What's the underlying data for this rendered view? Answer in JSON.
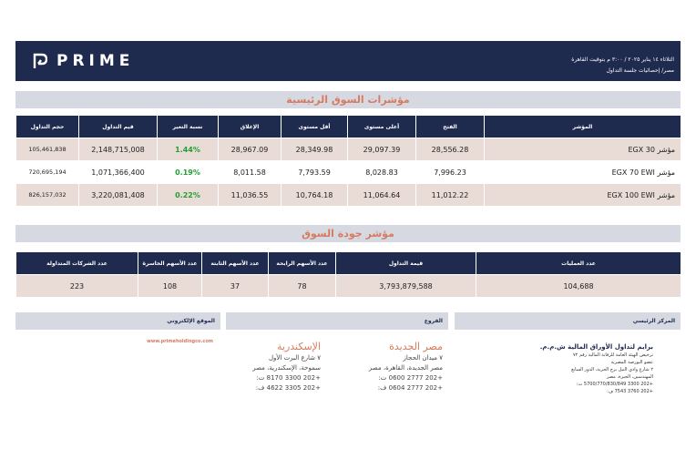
{
  "header": {
    "brand": "PRIME",
    "date_line": "الثلاثاء ١٤ يناير ٢٠٢٥ / ٣:٠٠ م بتوقيت القاهرة",
    "sub_line": "مصر/ إحصائيات جلسة التداول"
  },
  "main_section": {
    "title": "مؤشرات السوق الرئيسية",
    "columns": [
      "المؤشر",
      "الفتح",
      "أعلى مستوى",
      "أقل مستوى",
      "الإغلاق",
      "نسبة التغير",
      "قيم التداول",
      "حجم التداول"
    ],
    "rows": [
      {
        "name": "مؤشر EGX 30",
        "open": "28,556.28",
        "high": "29,097.39",
        "low": "28,349.98",
        "close": "28,967.09",
        "change": "1.44%",
        "value": "2,148,715,008",
        "volume": "105,461,838"
      },
      {
        "name": "مؤشر EGX 70 EWI",
        "open": "7,996.23",
        "high": "8,028.83",
        "low": "7,793.59",
        "close": "8,011.58",
        "change": "0.19%",
        "value": "1,071,366,400",
        "volume": "720,695,194"
      },
      {
        "name": "مؤشر EGX 100 EWI",
        "open": "11,012.22",
        "high": "11,064.64",
        "low": "10,764.18",
        "close": "11,036.55",
        "change": "0.22%",
        "value": "3,220,081,408",
        "volume": "826,157,032"
      }
    ]
  },
  "quality_section": {
    "title": "مؤشر جودة السوق",
    "columns": [
      "عدد العمليات",
      "قيمة التداول",
      "عدد الأسهم الرابحة",
      "عدد الأسهم الثابتة",
      "عدد الأسهم الخاسرة",
      "عدد الشركات المتداولة"
    ],
    "values": [
      "104,688",
      "3,793,879,588",
      "78",
      "37",
      "108",
      "223"
    ]
  },
  "footer": {
    "hq_label": "المركز الرئيسي",
    "branches_label": "الفروع",
    "website_label": "الموقع الإلكتروني",
    "website": "www.primeholdingco.com",
    "hq_company": "برايم لتداول الأوراق المالية ش.م.م.",
    "hq_license": "ترخيص الهيئة العامة للرقابة المالية رقم ٧٢",
    "hq_member": "عضو البورصة المصرية",
    "hq_address1": "٢ شارع وادي النيل برج الحرية، الدور السابع",
    "hq_address2": "المهندسين، الجيزة، مصر",
    "hq_tel": "+202 3300 5700/770/830/849 ت:",
    "hq_fax": "+202 3760 7543 ف:",
    "branch1_city": "مصر الجديدة",
    "branch1_street": "٧ ميدان الحجاز",
    "branch1_area": "مصر الجديدة، القاهرة، مصر",
    "branch1_tel": "+202 2777 0600 ت:",
    "branch1_fax": "+202 2777 0604 ف:",
    "branch2_city": "الإسكندرية",
    "branch2_street": "٧ شارع البرت الأول",
    "branch2_area": "سموحة، الإسكندرية، مصر",
    "branch2_tel": "+202 3300 8170 ت:",
    "branch2_fax": "+202 3305 4622 ف:"
  },
  "colors": {
    "navy": "#1f2a4f",
    "accent": "#d77b5f",
    "positive": "#22a033",
    "band": "#d6d9e2",
    "row_alt": "#e9dcd6"
  }
}
